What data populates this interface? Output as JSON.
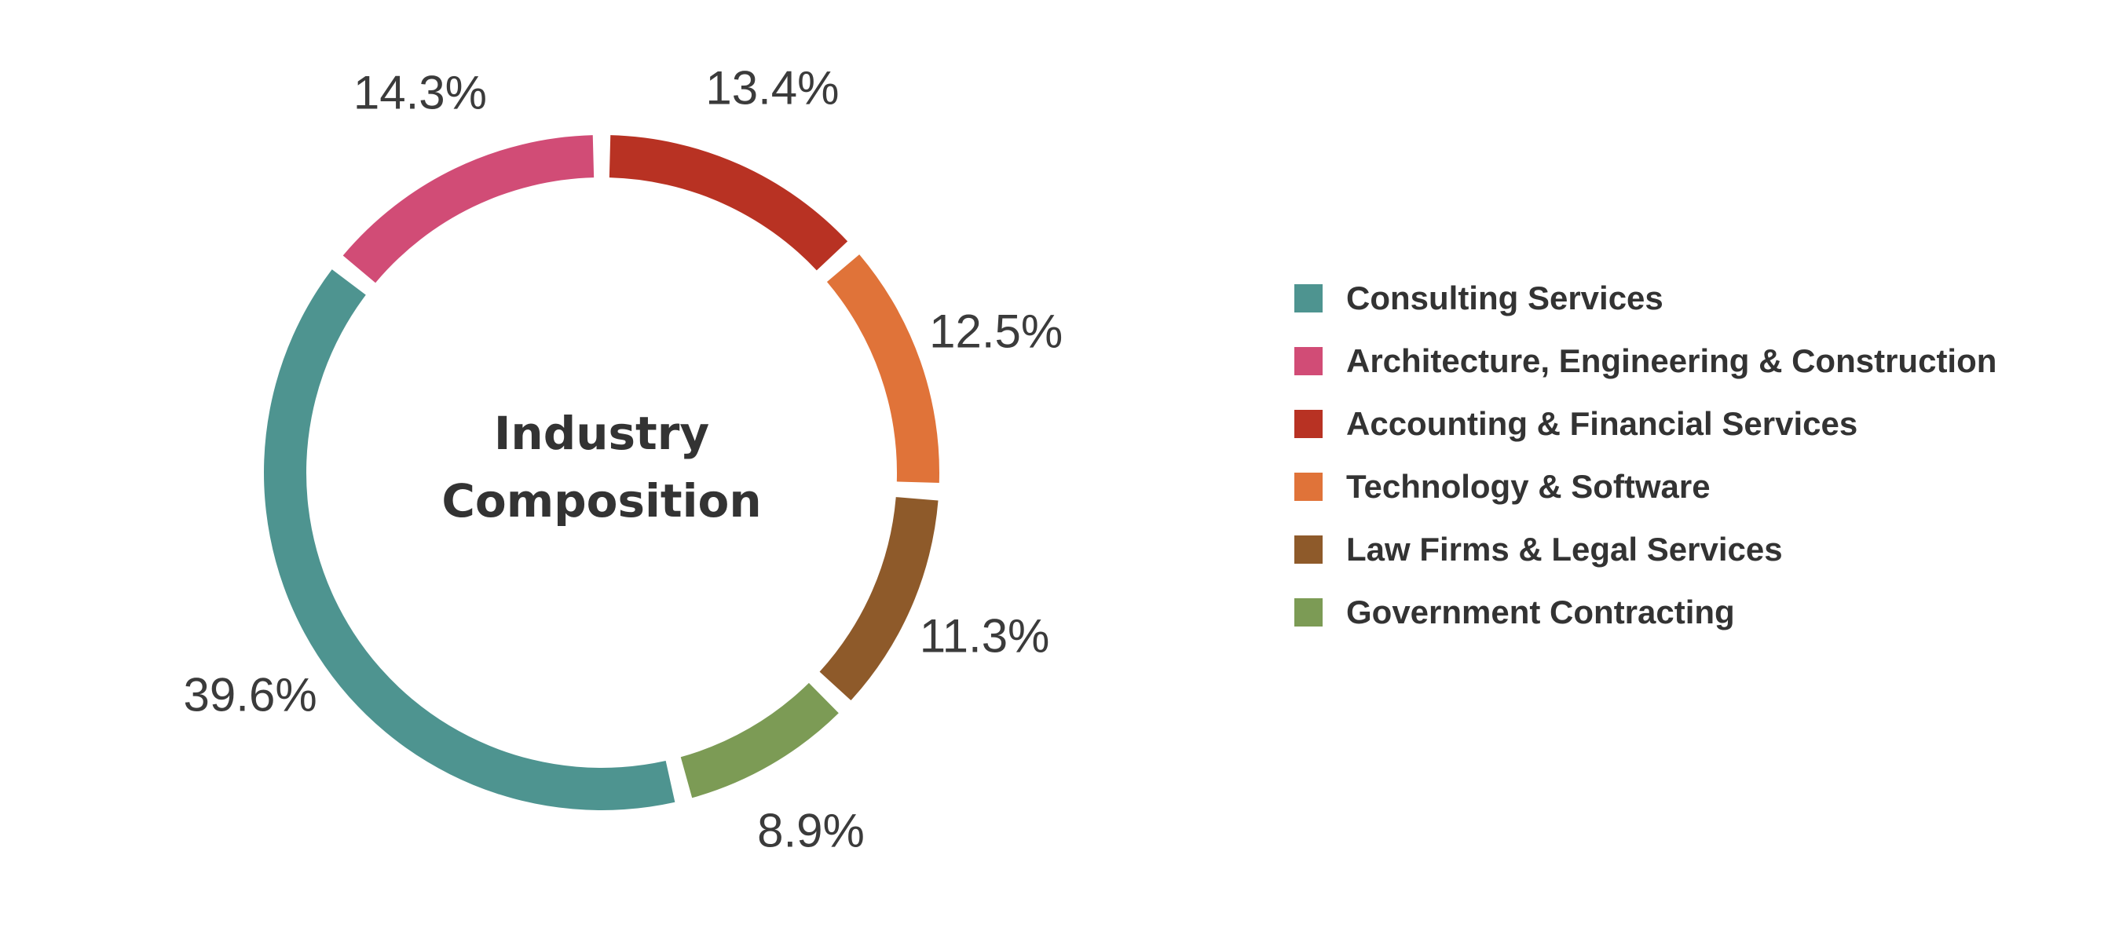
{
  "chart_data": {
    "type": "pie",
    "title": "Industry Composition",
    "title_lines": [
      "Industry",
      "Composition"
    ],
    "legend_position": "right",
    "slices": [
      {
        "name": "Consulting Services",
        "value": 39.6,
        "label": "39.6%",
        "color": "#4e9490"
      },
      {
        "name": "Architecture, Engineering & Construction",
        "value": 14.3,
        "label": "14.3%",
        "color": "#d14c76"
      },
      {
        "name": "Accounting & Financial Services",
        "value": 13.4,
        "label": "13.4%",
        "color": "#b83223"
      },
      {
        "name": "Technology & Software",
        "value": 12.5,
        "label": "12.5%",
        "color": "#e07339"
      },
      {
        "name": "Law Firms & Legal Services",
        "value": 11.3,
        "label": "11.3%",
        "color": "#8e5a2a"
      },
      {
        "name": "Government Contracting",
        "value": 8.9,
        "label": "8.9%",
        "color": "#7c9b55"
      }
    ]
  }
}
